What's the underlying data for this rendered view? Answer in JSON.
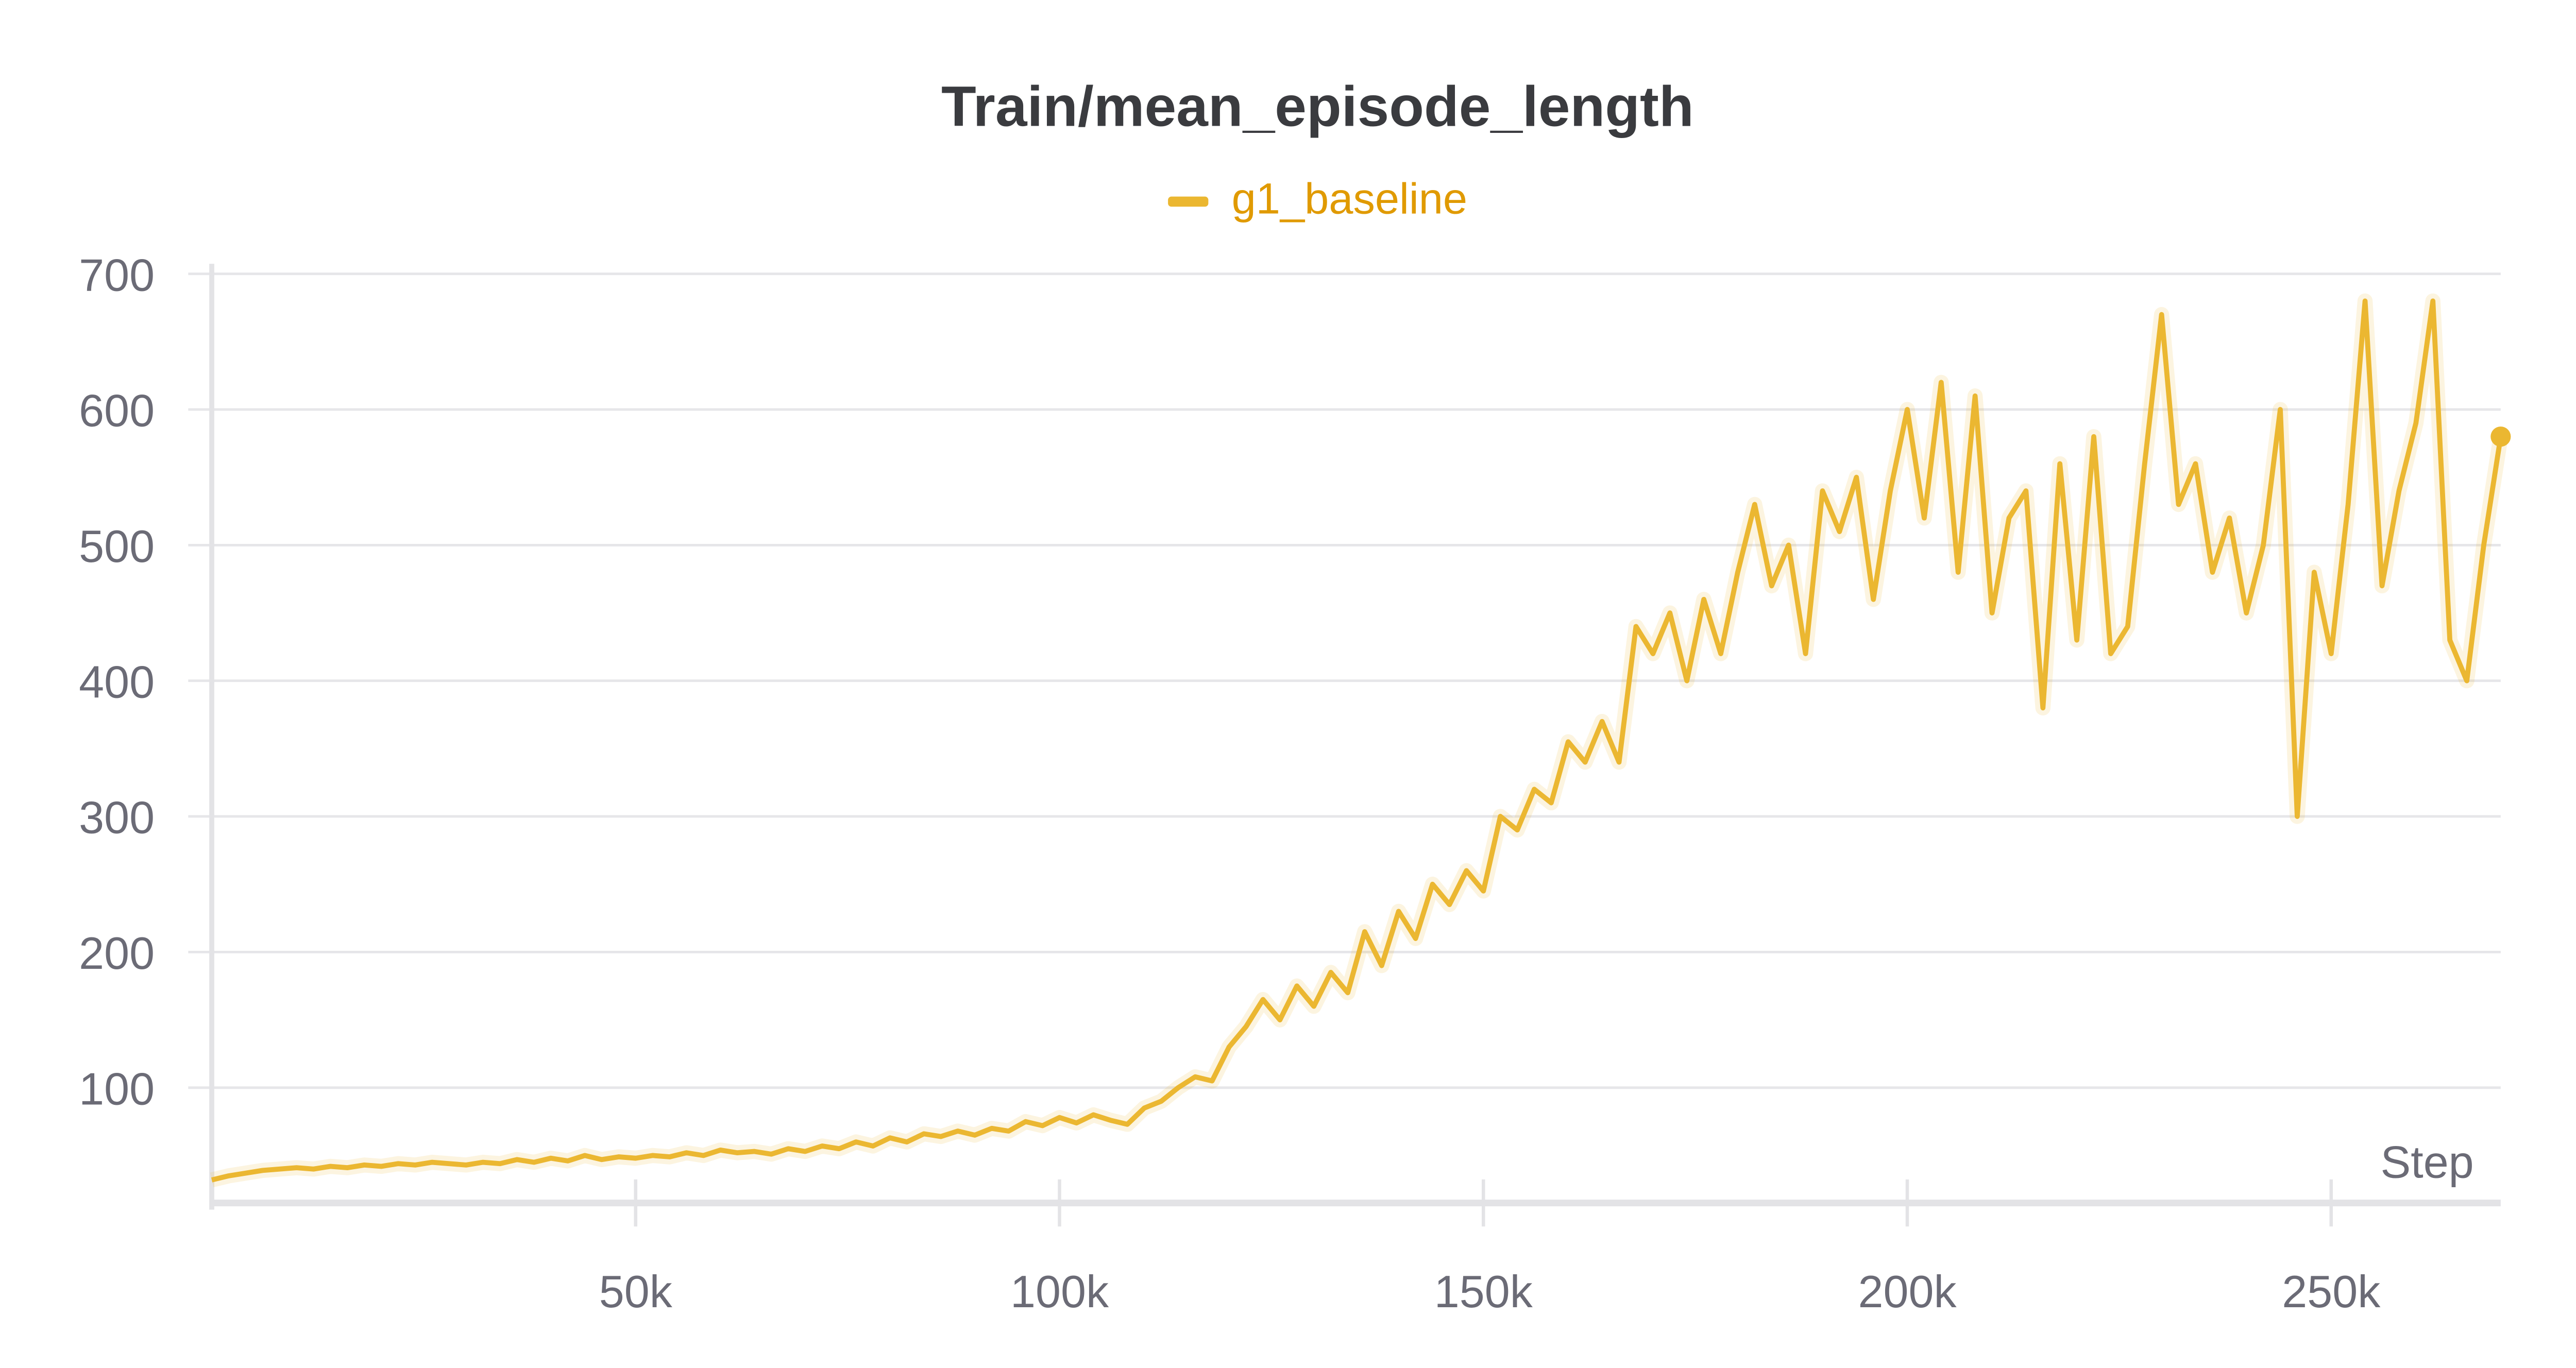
{
  "chart_data": {
    "type": "line",
    "title": "Train/mean_episode_length",
    "xlabel": "Step",
    "ylabel": "",
    "xlim": [
      0,
      270000
    ],
    "ylim": [
      15,
      700
    ],
    "grid": true,
    "legend_placement": "top-center",
    "xticks": [
      50000,
      100000,
      150000,
      200000,
      250000
    ],
    "xtick_labels": [
      "50k",
      "100k",
      "150k",
      "200k",
      "250k"
    ],
    "yticks": [
      100,
      200,
      300,
      400,
      500,
      600,
      700
    ],
    "ytick_labels": [
      "100",
      "200",
      "300",
      "400",
      "500",
      "600",
      "700"
    ],
    "series": [
      {
        "name": "g1_baseline",
        "color": "#ebb731",
        "x_step": 2000,
        "values": [
          32,
          35,
          37,
          39,
          40,
          41,
          40,
          42,
          41,
          43,
          42,
          44,
          43,
          45,
          44,
          43,
          45,
          44,
          47,
          45,
          48,
          46,
          50,
          47,
          49,
          48,
          50,
          49,
          52,
          50,
          54,
          52,
          53,
          51,
          55,
          53,
          57,
          55,
          60,
          57,
          63,
          60,
          66,
          64,
          68,
          65,
          70,
          68,
          75,
          72,
          78,
          74,
          80,
          76,
          73,
          85,
          90,
          100,
          108,
          105,
          130,
          145,
          165,
          150,
          175,
          160,
          185,
          170,
          215,
          190,
          230,
          210,
          250,
          235,
          260,
          245,
          300,
          290,
          320,
          310,
          355,
          340,
          370,
          340,
          440,
          420,
          450,
          400,
          460,
          420,
          480,
          530,
          470,
          500,
          420,
          540,
          510,
          550,
          460,
          540,
          600,
          520,
          620,
          480,
          610,
          450,
          520,
          540,
          380,
          560,
          430,
          580,
          420,
          440,
          560,
          670,
          530,
          560,
          480,
          520,
          450,
          500,
          600,
          300,
          480,
          420,
          530,
          680,
          470,
          540,
          590,
          680,
          430,
          400,
          500,
          580
        ]
      }
    ]
  }
}
